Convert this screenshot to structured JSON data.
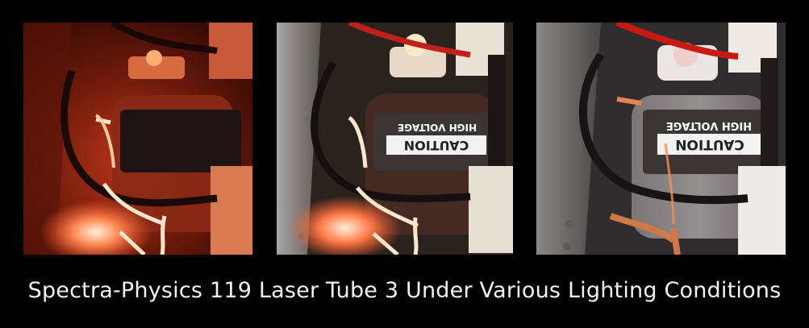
{
  "caption": "Spectra-Physics 119 Laser Tube 3 Under Various Lighting Conditions",
  "panels": [
    {
      "lighting": "dark",
      "colors": {
        "background": "#3a0a04",
        "glow": "#ff6a3a",
        "label": "#1e1414"
      }
    },
    {
      "lighting": "dim",
      "label_line1": "CAUTION",
      "label_line2": "HIGH VOLTAGE",
      "colors": {
        "background": "#2b2520",
        "glow": "#ff7850",
        "label": "#3a3434"
      }
    },
    {
      "lighting": "bright",
      "label_line1": "CAUTION",
      "label_line2": "HIGH VOLTAGE",
      "colors": {
        "background": "#2e2d2e",
        "glow": "#ff6040",
        "label": "#3b3636"
      }
    }
  ]
}
